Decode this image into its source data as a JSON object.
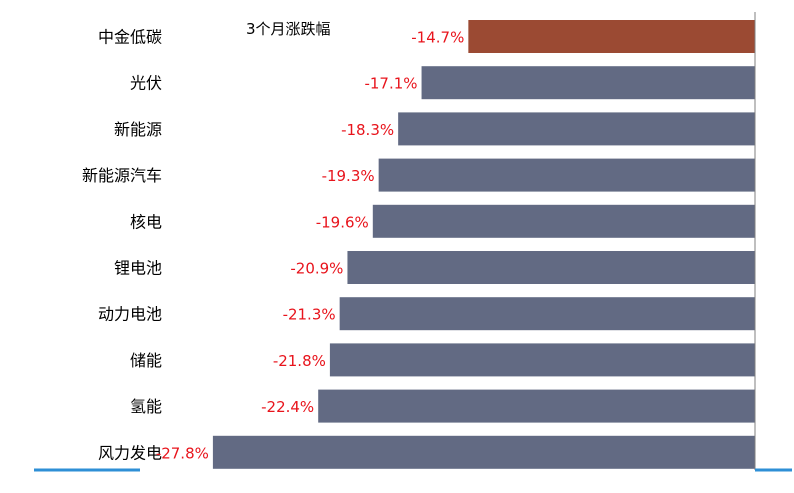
{
  "chart_data": {
    "type": "bar",
    "orientation": "horizontal",
    "title": "3个月涨跌幅",
    "categories": [
      "中金低碳",
      "光伏",
      "新能源",
      "新能源汽车",
      "核电",
      "锂电池",
      "动力电池",
      "储能",
      "氢能",
      "风力发电"
    ],
    "values": [
      -14.7,
      -17.1,
      -18.3,
      -19.3,
      -19.6,
      -20.9,
      -21.3,
      -21.8,
      -22.4,
      -27.8
    ],
    "value_labels": [
      "-14.7%",
      "-17.1%",
      "-18.3%",
      "-19.3%",
      "-19.6%",
      "-20.9%",
      "-21.3%",
      "-21.8%",
      "-22.4%",
      "-27.8%"
    ],
    "unit": "%",
    "xlim": [
      -28.6,
      0
    ],
    "grid": false,
    "legend": "none",
    "colors": {
      "highlight": "#9b4a33",
      "default": "#626a83",
      "value_label": "#e8141c",
      "accent_line": "#2e8fd6",
      "axis": "#7f7f7f"
    }
  }
}
